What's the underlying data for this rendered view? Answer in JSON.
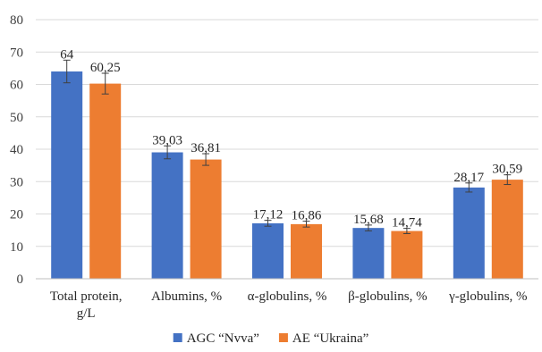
{
  "chart_data": {
    "type": "bar",
    "categories": [
      [
        "Total protein,",
        "g/L"
      ],
      [
        "Albumins, %"
      ],
      [
        "α-globulins, %"
      ],
      [
        "β-globulins, %"
      ],
      [
        "γ-globulins, %"
      ]
    ],
    "series": [
      {
        "name": "AGC “Nvva”",
        "values": [
          64,
          39.03,
          17.12,
          15.68,
          28.17
        ],
        "value_labels": [
          "64",
          "39,03",
          "17,12",
          "15,68",
          "28,17"
        ],
        "errors": [
          3.5,
          2.0,
          0.9,
          0.9,
          1.4
        ],
        "color": "#4472c4"
      },
      {
        "name": "AE “Ukraina”",
        "values": [
          60.25,
          36.81,
          16.86,
          14.74,
          30.59
        ],
        "value_labels": [
          "60,25",
          "36,81",
          "16,86",
          "14,74",
          "30,59"
        ],
        "errors": [
          3.2,
          1.8,
          0.9,
          0.8,
          1.5
        ],
        "color": "#ed7d31"
      }
    ],
    "ylim": [
      0,
      80
    ],
    "yticks": [
      0,
      10,
      20,
      30,
      40,
      50,
      60,
      70,
      80
    ],
    "grid": true,
    "legend": "bottom",
    "error_bars": true
  }
}
